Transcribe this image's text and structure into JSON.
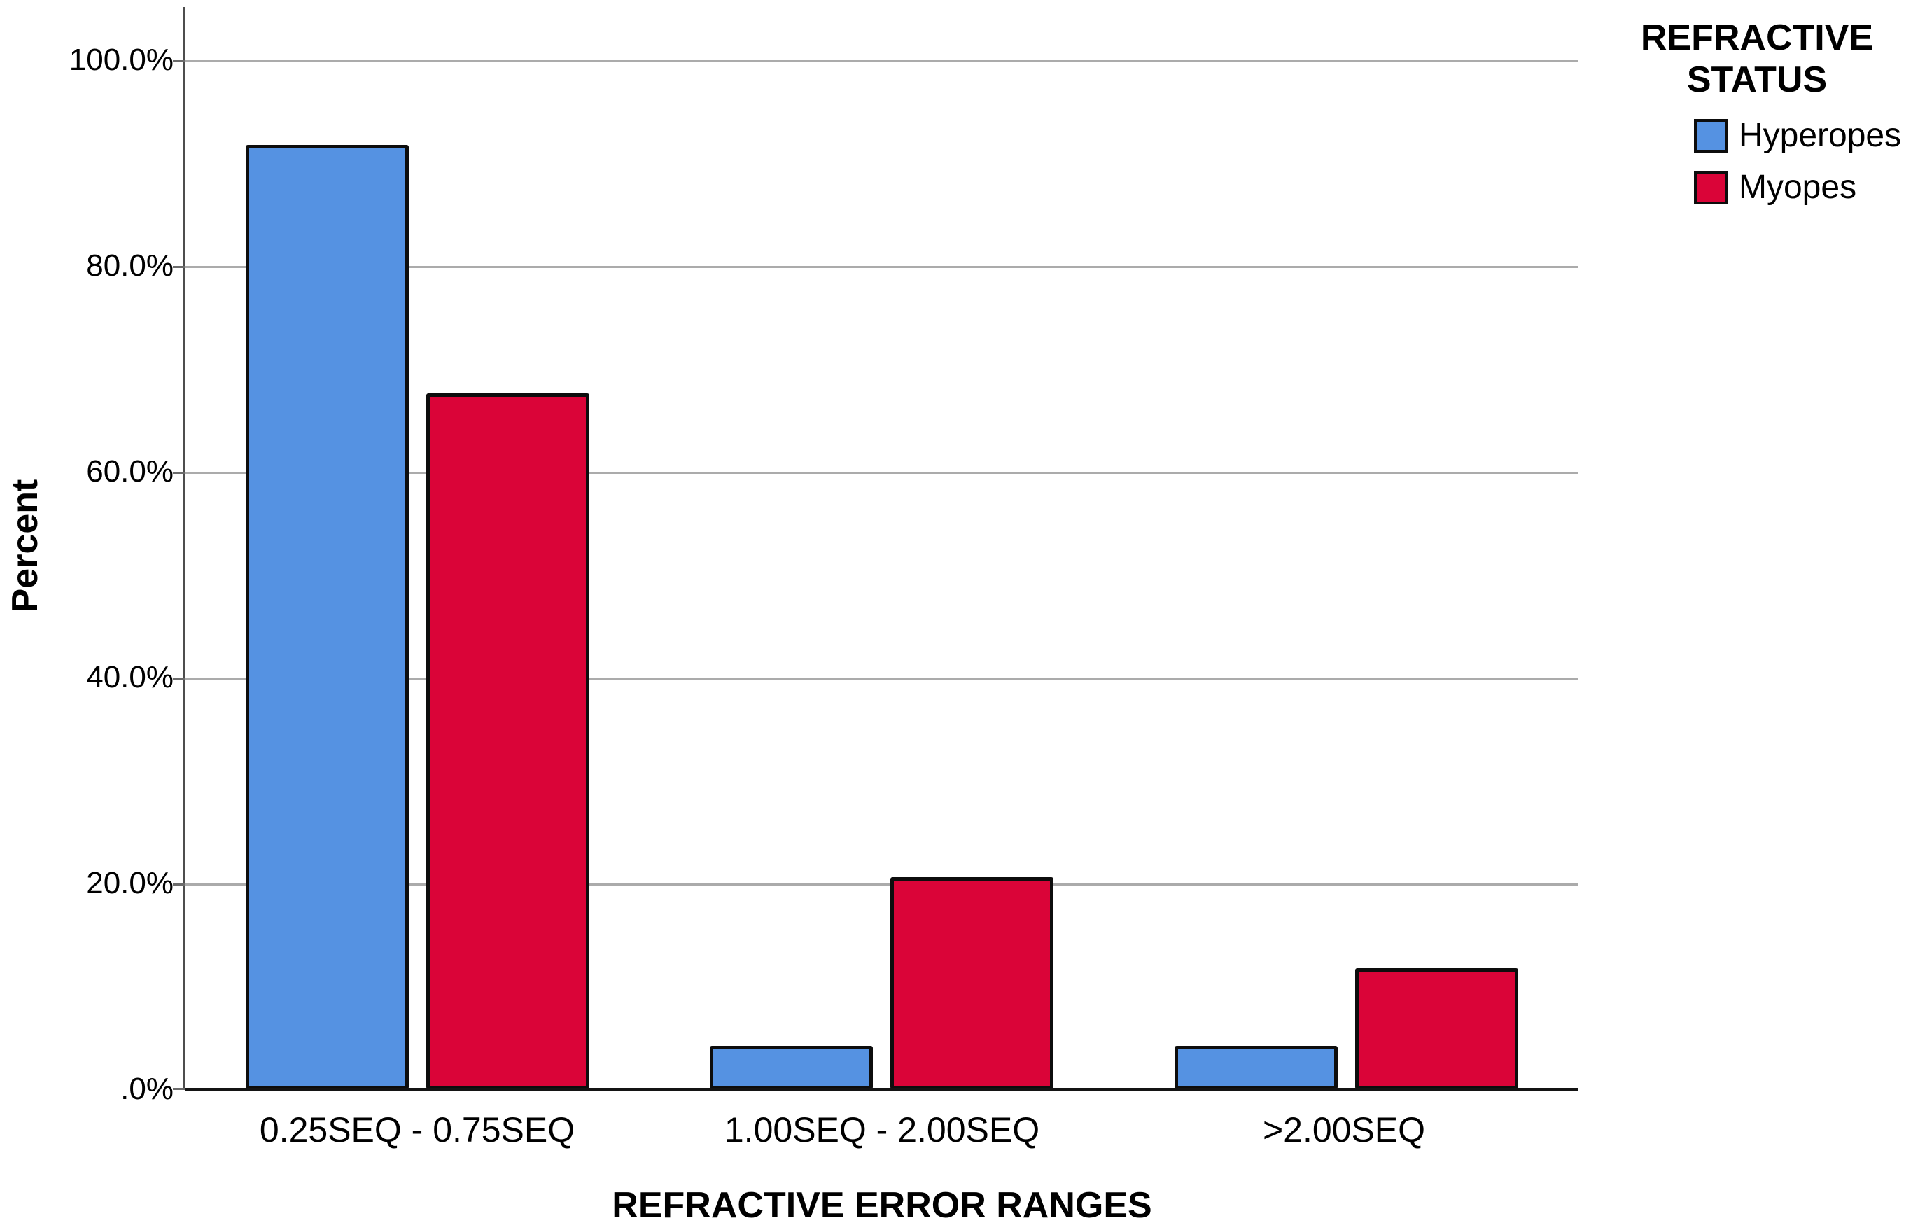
{
  "chart_data": {
    "type": "bar",
    "title": "",
    "categories": [
      "0.25SEQ - 0.75SEQ",
      "1.00SEQ - 2.00SEQ",
      ">2.00SEQ"
    ],
    "series": [
      {
        "name": "Hyperopes",
        "color": "#5592e2",
        "values": [
          91.8,
          4.2,
          4.2
        ]
      },
      {
        "name": "Myopes",
        "color": "#da0438",
        "values": [
          67.6,
          20.6,
          11.8
        ]
      }
    ],
    "xlabel": "REFRACTIVE ERROR RANGES",
    "ylabel": "Percent",
    "ylim": [
      0,
      105
    ],
    "yticks": {
      "labels": [
        "100.0%",
        "80.0%",
        "60.0%",
        "40.0%",
        "20.0%",
        ".0%"
      ],
      "values": [
        100,
        80,
        60,
        40,
        20,
        0
      ]
    },
    "grid": "horizontal",
    "legend": {
      "position": "top-right",
      "title_lines": [
        "REFRACTIVE",
        "STATUS"
      ],
      "entries": [
        {
          "label": "Hyperopes",
          "color": "#5592e2"
        },
        {
          "label": "Myopes",
          "color": "#da0438"
        }
      ]
    }
  },
  "colors": {
    "background": "#ffffff",
    "gridline": "#ababab",
    "axis_line": "#4d4d4d",
    "baseline": "#141414",
    "text": "#000000"
  }
}
